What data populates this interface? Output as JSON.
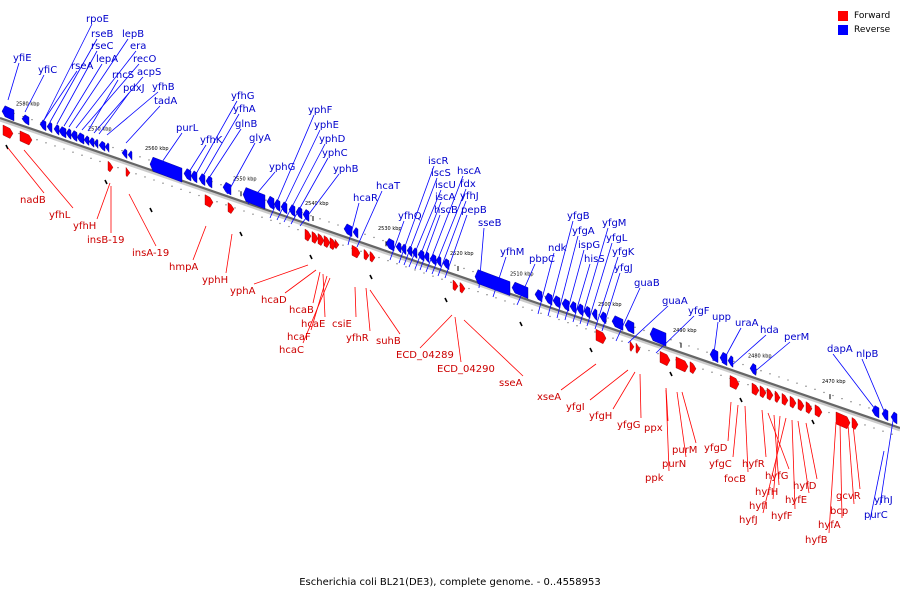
{
  "legend": {
    "items": [
      {
        "label": "Forward",
        "color": "#ff0000"
      },
      {
        "label": "Reverse",
        "color": "#0000ff"
      }
    ]
  },
  "caption": "Escherichia coli BL21(DE3), complete genome. - 0..4558953",
  "colors": {
    "forward": "#ff0000",
    "reverse": "#0000ff",
    "forward_label": "#cc0000",
    "reverse_label": "#0000cc",
    "axis": "#888888"
  },
  "ticks": [
    "2580 kbp",
    "2570 kbp",
    "2560 kbp",
    "2550 kbp",
    "2540 kbp",
    "2530 kbp",
    "2520 kbp",
    "2510 kbp",
    "2500 kbp",
    "2490 kbp",
    "2480 kbp",
    "2470 kbp"
  ],
  "reverse_genes": [
    "yfiE",
    "yfiC",
    "rpoE",
    "rseB",
    "rseC",
    "lepA",
    "rseA",
    "lepB",
    "era",
    "recO",
    "rncS",
    "acpS",
    "pdxJ",
    "yfhB",
    "tadA",
    "purL",
    "yfhK",
    "yfhG",
    "yfhA",
    "glnB",
    "glyA",
    "yphG",
    "yphF",
    "yphE",
    "yphD",
    "yphC",
    "yphB",
    "hcaR",
    "hcaT",
    "yfhQ",
    "iscR",
    "iscS",
    "iscU",
    "iscA",
    "hscB",
    "hscA",
    "fdx",
    "yfhJ",
    "pepB",
    "sseB",
    "yfhM",
    "pbpC",
    "ndk",
    "yfgB",
    "yfgA",
    "ispG",
    "hisS",
    "yfgM",
    "yfgL",
    "yfgK",
    "yfgJ",
    "guaB",
    "guaA",
    "yfgF",
    "upp",
    "uraA",
    "hda",
    "perM",
    "dapA",
    "nlpB",
    "yfhJ",
    "purC"
  ],
  "forward_genes": [
    "nadB",
    "yfhL",
    "yfhH",
    "insB-19",
    "insA-19",
    "hmpA",
    "yphH",
    "yphA",
    "hcaD",
    "hcaB",
    "hcaE",
    "hcaF",
    "hcaC",
    "csiE",
    "yfhR",
    "suhB",
    "ECD_04289",
    "ECD_04290",
    "sseA",
    "xseA",
    "yfgI",
    "yfgH",
    "yfgG",
    "ppx",
    "purM",
    "purN",
    "ppk",
    "yfgD",
    "yfgC",
    "focB",
    "hyfR",
    "hyfG",
    "hyfH",
    "hyfI",
    "hyfJ",
    "hyfF",
    "hyfE",
    "hyfD",
    "gcvR",
    "bcp",
    "hyfA",
    "hyfB"
  ]
}
